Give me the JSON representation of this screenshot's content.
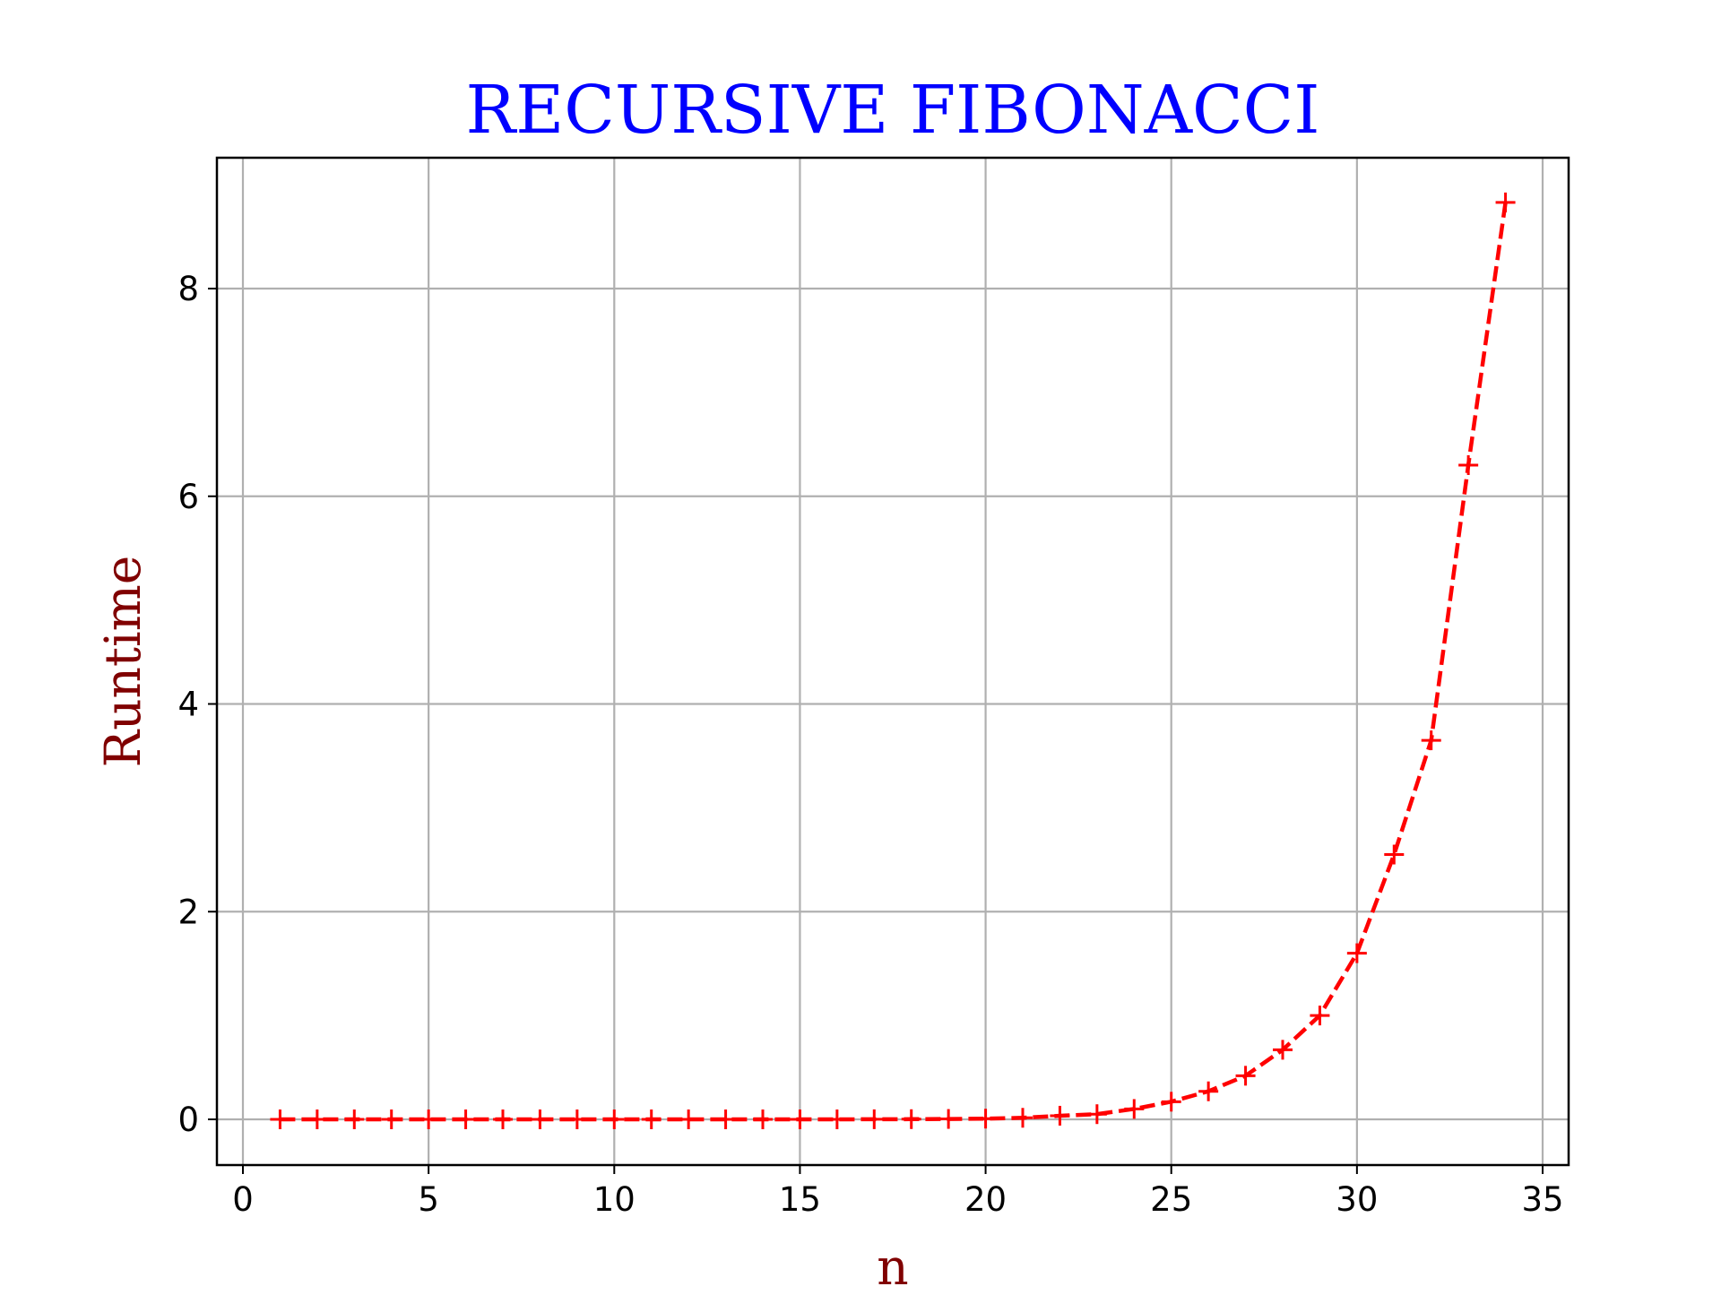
{
  "chart_data": {
    "type": "line",
    "title": "RECURSIVE FIBONACCI",
    "xlabel": "n",
    "ylabel": "Runtime",
    "xlim": [
      -0.7,
      35.7
    ],
    "ylim": [
      -0.44,
      9.26
    ],
    "xticks": [
      0,
      5,
      10,
      15,
      20,
      25,
      30,
      35
    ],
    "yticks": [
      0,
      2,
      4,
      6,
      8
    ],
    "xtick_labels": [
      "0",
      "5",
      "10",
      "15",
      "20",
      "25",
      "30",
      "35"
    ],
    "ytick_labels": [
      "0",
      "2",
      "4",
      "6",
      "8"
    ],
    "grid": true,
    "colors": {
      "title": "#0000ff",
      "axis_label": "#800000",
      "series": "#ff0000",
      "grid": "#b0b0b0",
      "axes": "#000000"
    },
    "series": [
      {
        "line_style": "dashed",
        "marker": "plus",
        "x": [
          1,
          2,
          3,
          4,
          5,
          6,
          7,
          8,
          9,
          10,
          11,
          12,
          13,
          14,
          15,
          16,
          17,
          18,
          19,
          20,
          21,
          22,
          23,
          24,
          25,
          26,
          27,
          28,
          29,
          30,
          31,
          32,
          33,
          34
        ],
        "y": [
          0,
          0,
          0,
          0,
          0,
          0,
          0,
          0,
          0,
          0,
          0,
          0,
          0,
          0,
          0,
          0,
          0.001,
          0.002,
          0.004,
          0.007,
          0.015,
          0.035,
          0.05,
          0.1,
          0.17,
          0.27,
          0.42,
          0.67,
          1.0,
          1.6,
          2.55,
          3.65,
          6.3,
          8.83
        ]
      }
    ]
  }
}
